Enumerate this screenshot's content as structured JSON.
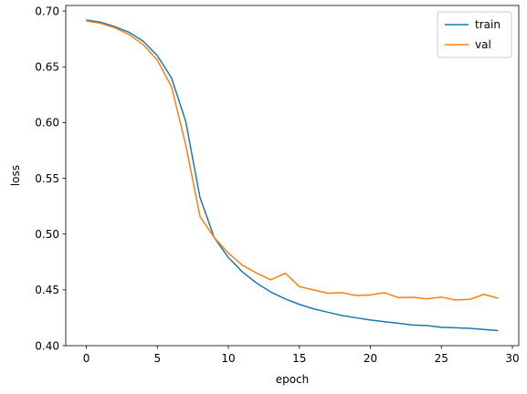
{
  "chart_data": {
    "type": "line",
    "xlabel": "epoch",
    "ylabel": "loss",
    "xlim": [
      -1.45,
      30.45
    ],
    "ylim": [
      0.4,
      0.705
    ],
    "xticks": [
      0,
      5,
      10,
      15,
      20,
      25,
      30
    ],
    "yticks": [
      0.4,
      0.45,
      0.5,
      0.55,
      0.6,
      0.65,
      0.7
    ],
    "ytick_labels": [
      "0.40",
      "0.45",
      "0.50",
      "0.55",
      "0.60",
      "0.65",
      "0.70"
    ],
    "grid": false,
    "legend_position": "top-right",
    "x": [
      0,
      1,
      2,
      3,
      4,
      5,
      6,
      7,
      8,
      9,
      10,
      11,
      12,
      13,
      14,
      15,
      16,
      17,
      18,
      19,
      20,
      21,
      22,
      23,
      24,
      25,
      26,
      27,
      28,
      29
    ],
    "series": [
      {
        "name": "train",
        "color": "#1f77b4",
        "values": [
          0.692,
          0.69,
          0.686,
          0.681,
          0.673,
          0.66,
          0.64,
          0.601,
          0.533,
          0.497,
          0.479,
          0.466,
          0.456,
          0.448,
          0.442,
          0.437,
          0.433,
          0.43,
          0.427,
          0.425,
          0.423,
          0.4215,
          0.42,
          0.4185,
          0.418,
          0.4165,
          0.416,
          0.4155,
          0.4145,
          0.4135
        ]
      },
      {
        "name": "val",
        "color": "#ff7f0e",
        "values": [
          0.691,
          0.689,
          0.685,
          0.679,
          0.67,
          0.656,
          0.632,
          0.58,
          0.516,
          0.497,
          0.483,
          0.472,
          0.465,
          0.459,
          0.465,
          0.453,
          0.45,
          0.447,
          0.4475,
          0.445,
          0.4455,
          0.4475,
          0.443,
          0.4433,
          0.442,
          0.4435,
          0.441,
          0.4415,
          0.446,
          0.4425
        ]
      }
    ]
  }
}
